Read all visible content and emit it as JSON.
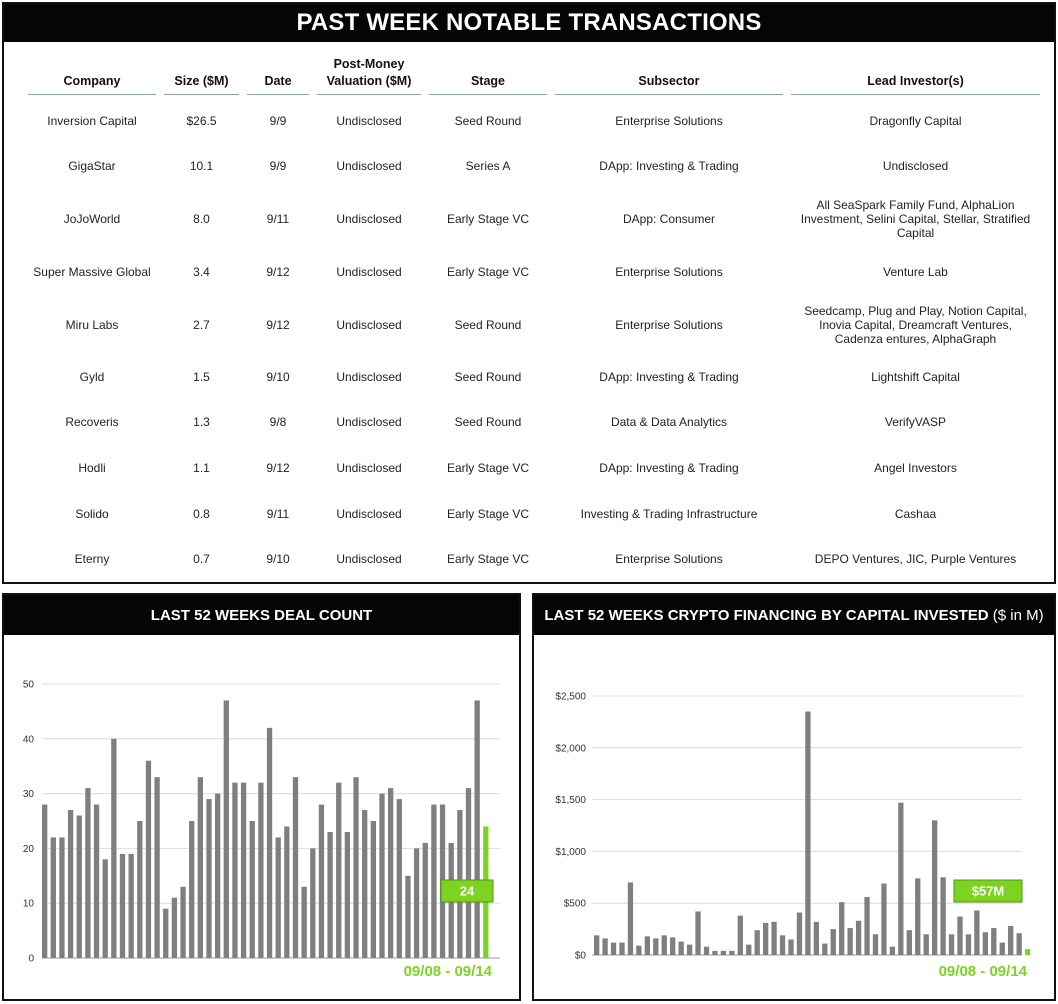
{
  "title": "PAST WEEK NOTABLE TRANSACTIONS",
  "table": {
    "columns": [
      "Company",
      "Size ($M)",
      "Date",
      "Post-Money Valuation ($M)",
      "Stage",
      "Subsector",
      "Lead Investor(s)"
    ],
    "rows": [
      [
        "Inversion Capital",
        "$26.5",
        "9/9",
        "Undisclosed",
        "Seed Round",
        "Enterprise Solutions",
        "Dragonfly Capital"
      ],
      [
        "GigaStar",
        "10.1",
        "9/9",
        "Undisclosed",
        "Series A",
        "DApp: Investing & Trading",
        "Undisclosed"
      ],
      [
        "JoJoWorld",
        "8.0",
        "9/11",
        "Undisclosed",
        "Early Stage VC",
        "DApp: Consumer",
        "All SeaSpark Family Fund, AlphaLion Investment, Selini Capital, Stellar, Stratified Capital"
      ],
      [
        "Super Massive Global",
        "3.4",
        "9/12",
        "Undisclosed",
        "Early Stage VC",
        "Enterprise Solutions",
        "Venture Lab"
      ],
      [
        "Miru Labs",
        "2.7",
        "9/12",
        "Undisclosed",
        "Seed Round",
        "Enterprise Solutions",
        "Seedcamp, Plug and Play, Notion Capital, Inovia Capital, Dreamcraft Ventures, Cadenza entures, AlphaGraph"
      ],
      [
        "Gyld",
        "1.5",
        "9/10",
        "Undisclosed",
        "Seed Round",
        "DApp: Investing & Trading",
        "Lightshift Capital"
      ],
      [
        "Recoveris",
        "1.3",
        "9/8",
        "Undisclosed",
        "Seed Round",
        "Data & Data Analytics",
        "VerifyVASP"
      ],
      [
        "Hodli",
        "1.1",
        "9/12",
        "Undisclosed",
        "Early Stage VC",
        "DApp: Investing & Trading",
        "Angel Investors"
      ],
      [
        "Solido",
        "0.8",
        "9/11",
        "Undisclosed",
        "Early Stage VC",
        "Investing & Trading Infrastructure",
        "Cashaa"
      ],
      [
        "Eterny",
        "0.7",
        "9/10",
        "Undisclosed",
        "Early Stage VC",
        "Enterprise Solutions",
        "DEPO Ventures, JIC, Purple Ventures"
      ]
    ]
  },
  "colors": {
    "bar": "#7f7f7f",
    "highlight": "#7ed321",
    "header_bg": "#050505",
    "rule": "#8ea0b5"
  },
  "chart_data": [
    {
      "type": "bar",
      "title": "LAST 52 WEEKS DEAL COUNT",
      "ylim": [
        0,
        50
      ],
      "yticks": [
        "0",
        "10",
        "20",
        "30",
        "40",
        "50"
      ],
      "ytick_values": [
        0,
        10,
        20,
        30,
        40,
        50
      ],
      "grid": true,
      "values": [
        28,
        22,
        22,
        27,
        26,
        31,
        28,
        18,
        40,
        19,
        19,
        25,
        36,
        33,
        9,
        11,
        13,
        25,
        33,
        29,
        30,
        47,
        32,
        32,
        25,
        32,
        42,
        22,
        24,
        33,
        13,
        20,
        28,
        23,
        32,
        23,
        33,
        27,
        25,
        30,
        31,
        29,
        15,
        20,
        21,
        28,
        28,
        21,
        27,
        31,
        47,
        24
      ],
      "highlight_index": 51,
      "callout": "24",
      "range_label": "09/08 - 09/14"
    },
    {
      "type": "bar",
      "title": "LAST 52 WEEKS CRYPTO FINANCING BY CAPITAL INVESTED",
      "title_suffix": "($ in M)",
      "ylim": [
        0,
        2500
      ],
      "yticks": [
        "$0",
        "$500",
        "$1,000",
        "$1,500",
        "$2,000",
        "$2,500"
      ],
      "ytick_values": [
        0,
        500,
        1000,
        1500,
        2000,
        2500
      ],
      "grid": true,
      "values": [
        190,
        160,
        120,
        120,
        700,
        90,
        180,
        160,
        190,
        170,
        130,
        100,
        420,
        80,
        40,
        40,
        40,
        380,
        100,
        240,
        310,
        320,
        190,
        150,
        410,
        2350,
        320,
        110,
        250,
        510,
        260,
        330,
        560,
        200,
        690,
        80,
        1470,
        240,
        740,
        200,
        1300,
        750,
        200,
        370,
        200,
        430,
        220,
        260,
        120,
        280,
        210,
        57
      ],
      "highlight_index": 51,
      "callout": "$57M",
      "range_label": "09/08 - 09/14"
    }
  ]
}
